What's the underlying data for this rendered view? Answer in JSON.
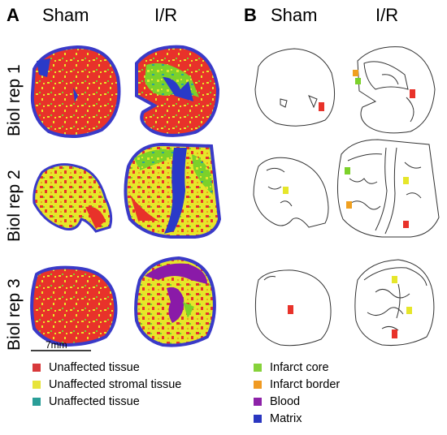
{
  "panels": {
    "a": "A",
    "b": "B"
  },
  "columns": {
    "sham": "Sham",
    "ir": "I/R"
  },
  "rows": [
    "Biol rep 1",
    "Biol rep 2",
    "Biol rep 3"
  ],
  "scale_bar": "7mm",
  "colors": {
    "unaffected_tissue": "#e8322a",
    "unaffected_stromal": "#e6e62a",
    "unaffected_teal": "#2aa39a",
    "infarct_core": "#7cd12a",
    "infarct_border": "#f0a020",
    "blood": "#8a1aa8",
    "matrix": "#2a3ac8"
  },
  "legend_left": [
    {
      "label": "Unaffected tissue",
      "color": "#d8393b"
    },
    {
      "label": "Unaffected stromal tissue",
      "color": "#e7e43a"
    },
    {
      "label": "Unaffected tissue",
      "color": "#2a9e98"
    }
  ],
  "legend_right": [
    {
      "label": "Infarct core",
      "color": "#86d23a"
    },
    {
      "label": "Infarct border",
      "color": "#f09a22"
    },
    {
      "label": "Blood",
      "color": "#8d22a8"
    },
    {
      "label": "Matrix",
      "color": "#2a36c0"
    }
  ]
}
